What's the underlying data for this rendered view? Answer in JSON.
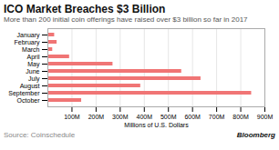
{
  "chart_data": {
    "type": "bar",
    "orientation": "horizontal",
    "title": "ICO Market Breaches $3 Billion",
    "subtitle": "More than 200 initial coin offerings have raised over $3 billion so far in 2017",
    "annotations": [
      "Source: Coinschedule",
      "Bloomberg"
    ],
    "xlabel": "Millions of U.S. Dollars",
    "categories": [
      "January",
      "February",
      "March",
      "April",
      "May",
      "June",
      "July",
      "August",
      "September",
      "October"
    ],
    "values": [
      28,
      38,
      20,
      90,
      270,
      555,
      635,
      385,
      845,
      140
    ],
    "color": "#f07575",
    "xlim": [
      0,
      900
    ],
    "xticks": [
      {
        "value": 100,
        "label": "100M"
      },
      {
        "value": 200,
        "label": "200M"
      },
      {
        "value": 300,
        "label": "300M"
      },
      {
        "value": 400,
        "label": "400M"
      },
      {
        "value": 500,
        "label": "500M"
      },
      {
        "value": 600,
        "label": "600M"
      },
      {
        "value": 700,
        "label": "700M"
      },
      {
        "value": 800,
        "label": "800M"
      },
      {
        "value": 900,
        "label": "900M"
      }
    ],
    "grid": true
  }
}
